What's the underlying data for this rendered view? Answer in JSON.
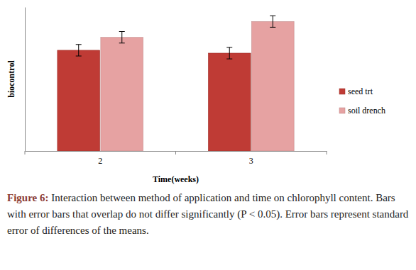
{
  "chart_data": {
    "type": "bar",
    "ylabel": "biocontrol",
    "xlabel": "Time(weeks)",
    "caption_label": "Figure 6:",
    "caption": "Interaction between method of application and time on chlorophyll content. Bars with error bars that overlap do not differ significantly (P < 0.05). Error bars represent standard error of differences of the means.",
    "categories": [
      "2",
      "3"
    ],
    "series": [
      {
        "name": "seed trt",
        "color": "#bf3b35",
        "values": [
          7.0,
          6.8
        ],
        "errors": [
          0.4,
          0.4
        ]
      },
      {
        "name": "soil drench",
        "color": "#e6a2a2",
        "values": [
          7.9,
          9.0
        ],
        "errors": [
          0.4,
          0.4
        ]
      }
    ],
    "ylim": [
      0,
      10
    ],
    "yticks": [],
    "tick_labels": "x",
    "legend": "right",
    "grid": false
  }
}
